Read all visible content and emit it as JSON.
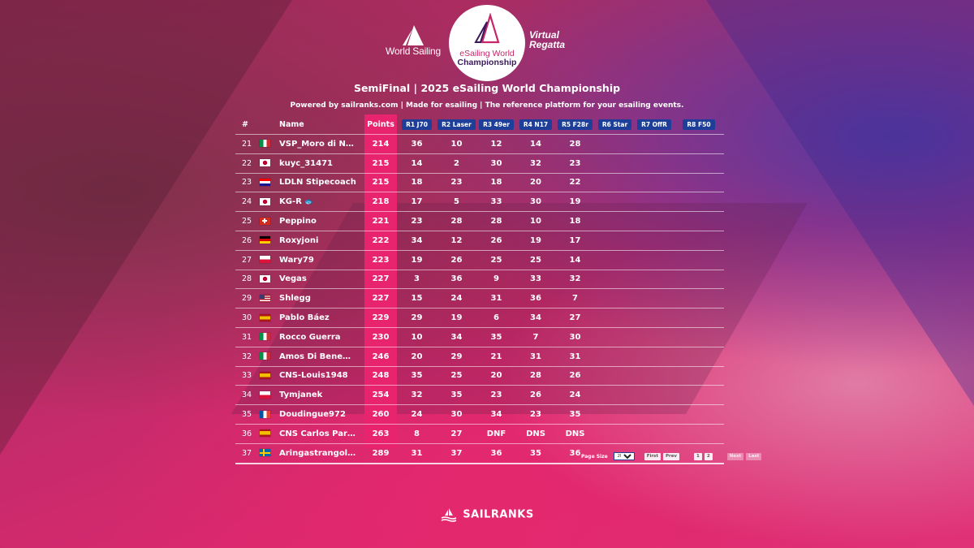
{
  "header": {
    "world_sailing": "World Sailing",
    "esailing_line1": "eSailing World",
    "esailing_line2": "Championship",
    "virtual_line1": "Virtual",
    "virtual_line2": "Regatta"
  },
  "title": "SemiFinal | 2025 eSailing World Championship",
  "subtitle": "Powered by sailranks.com | Made for esailing | The reference platform for your esailing events.",
  "table": {
    "headers": {
      "pos": "#",
      "name": "Name",
      "points": "Points",
      "races": [
        "R1 J70",
        "R2 Laser",
        "R3 49er",
        "R4 N17",
        "R5 F28r",
        "R6 Star",
        "R7 OffR",
        "R8 F50"
      ]
    },
    "rows": [
      {
        "pos": "21",
        "flag": "it",
        "name": "VSP_Moro di Na...",
        "points": "214",
        "r1": "36",
        "r2": "10",
        "r3": "12",
        "r4": "14",
        "r5": "28"
      },
      {
        "pos": "22",
        "flag": "jp",
        "name": "kuyc_31471",
        "points": "215",
        "r1": "14",
        "r2": "2",
        "r3": "30",
        "r4": "32",
        "r5": "23"
      },
      {
        "pos": "23",
        "flag": "hr",
        "name": "LDLN Stipecoach",
        "points": "215",
        "r1": "18",
        "r2": "23",
        "r3": "18",
        "r4": "20",
        "r5": "22"
      },
      {
        "pos": "24",
        "flag": "jp",
        "name": "KG-R",
        "points": "218",
        "r1": "17",
        "r2": "5",
        "r3": "33",
        "r4": "30",
        "r5": "19",
        "emoji": "🐟"
      },
      {
        "pos": "25",
        "flag": "ch",
        "name": "Peppino",
        "points": "221",
        "r1": "23",
        "r2": "28",
        "r3": "28",
        "r4": "10",
        "r5": "18"
      },
      {
        "pos": "26",
        "flag": "de",
        "name": "Roxyjoni",
        "points": "222",
        "r1": "34",
        "r2": "12",
        "r3": "26",
        "r4": "19",
        "r5": "17"
      },
      {
        "pos": "27",
        "flag": "pl",
        "name": "Wary79",
        "points": "223",
        "r1": "19",
        "r2": "26",
        "r3": "25",
        "r4": "25",
        "r5": "14"
      },
      {
        "pos": "28",
        "flag": "jp",
        "name": "Vegas",
        "points": "227",
        "r1": "3",
        "r2": "36",
        "r3": "9",
        "r4": "33",
        "r5": "32"
      },
      {
        "pos": "29",
        "flag": "us",
        "name": "Shlegg",
        "points": "227",
        "r1": "15",
        "r2": "24",
        "r3": "31",
        "r4": "36",
        "r5": "7"
      },
      {
        "pos": "30",
        "flag": "es",
        "name": "Pablo Báez",
        "points": "229",
        "r1": "29",
        "r2": "19",
        "r3": "6",
        "r4": "34",
        "r5": "27"
      },
      {
        "pos": "31",
        "flag": "it",
        "name": "Rocco Guerra",
        "points": "230",
        "r1": "10",
        "r2": "34",
        "r3": "35",
        "r4": "7",
        "r5": "30"
      },
      {
        "pos": "32",
        "flag": "it",
        "name": "Amos Di Benede...",
        "points": "246",
        "r1": "20",
        "r2": "29",
        "r3": "21",
        "r4": "31",
        "r5": "31"
      },
      {
        "pos": "33",
        "flag": "es",
        "name": "CNS-Louis1948",
        "points": "248",
        "r1": "35",
        "r2": "25",
        "r3": "20",
        "r4": "28",
        "r5": "26"
      },
      {
        "pos": "34",
        "flag": "pl",
        "name": "Tymjanek",
        "points": "254",
        "r1": "32",
        "r2": "35",
        "r3": "23",
        "r4": "26",
        "r5": "24"
      },
      {
        "pos": "35",
        "flag": "fr",
        "name": "Doudingue972",
        "points": "260",
        "r1": "24",
        "r2": "30",
        "r3": "34",
        "r4": "23",
        "r5": "35"
      },
      {
        "pos": "36",
        "flag": "es",
        "name": "CNS Carlos Parejo",
        "points": "263",
        "r1": "8",
        "r2": "27",
        "r3": "DNF",
        "r4": "DNS",
        "r5": "DNS"
      },
      {
        "pos": "37",
        "flag": "se",
        "name": "Aringastrangolat...",
        "points": "289",
        "r1": "31",
        "r2": "37",
        "r3": "36",
        "r4": "35",
        "r5": "36"
      }
    ]
  },
  "pager": {
    "page_size_label": "Page Size",
    "page_size_value": "20",
    "first": "First",
    "prev": "Prev",
    "pages": [
      "1",
      "2"
    ],
    "next": "Next",
    "last": "Last"
  },
  "footer": "SAILRANKS",
  "colors": {
    "points_column": "#e9246f",
    "race_badge": "#1d3f9a",
    "brand_pink": "#c72767"
  }
}
